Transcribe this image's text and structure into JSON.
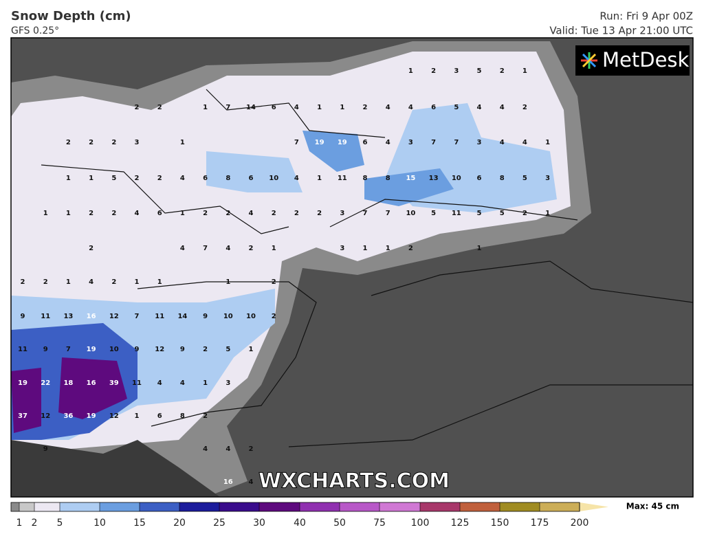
{
  "header": {
    "title": "Snow Depth (cm)",
    "subtitle": "GFS 0.25°",
    "run": "Run: Fri 9 Apr 00Z",
    "valid": "Valid: Tue 13 Apr 21:00 UTC"
  },
  "logo": "MetDesk",
  "watermark": "WXCHARTS.COM",
  "map_values": [
    [
      null,
      null,
      null,
      null,
      null,
      null,
      null,
      null,
      null,
      null,
      null,
      null,
      null,
      null,
      null,
      null,
      null,
      1,
      2,
      3,
      5,
      2,
      1,
      null
    ],
    [
      null,
      null,
      null,
      null,
      null,
      2,
      2,
      null,
      1,
      7,
      14,
      6,
      4,
      1,
      1,
      2,
      4,
      4,
      6,
      5,
      4,
      4,
      2,
      null
    ],
    [
      null,
      null,
      2,
      2,
      2,
      3,
      null,
      1,
      null,
      null,
      null,
      null,
      7,
      19,
      19,
      6,
      4,
      3,
      7,
      7,
      3,
      4,
      4,
      1
    ],
    [
      null,
      null,
      1,
      1,
      5,
      2,
      2,
      4,
      6,
      8,
      6,
      10,
      4,
      1,
      11,
      8,
      8,
      15,
      13,
      10,
      6,
      8,
      5,
      3
    ],
    [
      null,
      1,
      1,
      2,
      2,
      4,
      6,
      1,
      2,
      2,
      4,
      2,
      2,
      2,
      3,
      7,
      7,
      10,
      5,
      11,
      5,
      5,
      2,
      1
    ],
    [
      null,
      null,
      null,
      2,
      null,
      null,
      null,
      4,
      7,
      4,
      2,
      1,
      null,
      null,
      3,
      1,
      1,
      2,
      null,
      null,
      1,
      null,
      null,
      null
    ],
    [
      2,
      2,
      1,
      4,
      2,
      1,
      1,
      null,
      null,
      1,
      null,
      2,
      null,
      null,
      null,
      null,
      null,
      null,
      null,
      null,
      null,
      null,
      null,
      null
    ],
    [
      9,
      11,
      13,
      16,
      12,
      7,
      11,
      14,
      9,
      10,
      10,
      2,
      null,
      null,
      null,
      null,
      null,
      null,
      null,
      null,
      null,
      null,
      null,
      null
    ],
    [
      11,
      9,
      7,
      19,
      10,
      9,
      12,
      9,
      2,
      5,
      1,
      null,
      null,
      null,
      null,
      null,
      null,
      null,
      null,
      null,
      null,
      null,
      null,
      null
    ],
    [
      19,
      22,
      18,
      16,
      39,
      11,
      4,
      4,
      1,
      3,
      null,
      null,
      null,
      null,
      null,
      null,
      null,
      null,
      null,
      null,
      null,
      null,
      null,
      null
    ],
    [
      37,
      12,
      36,
      19,
      12,
      1,
      6,
      8,
      2,
      null,
      null,
      null,
      null,
      null,
      null,
      null,
      null,
      null,
      null,
      null,
      null,
      null,
      null,
      null
    ],
    [
      null,
      9,
      null,
      null,
      null,
      null,
      null,
      null,
      4,
      4,
      2,
      null,
      null,
      null,
      null,
      null,
      null,
      null,
      null,
      null,
      null,
      null,
      null,
      null
    ],
    [
      null,
      null,
      null,
      null,
      null,
      null,
      null,
      null,
      null,
      16,
      4,
      null,
      null,
      null,
      null,
      null,
      null,
      null,
      null,
      null,
      null,
      null,
      null,
      null
    ]
  ],
  "legend": {
    "labels": [
      1,
      2,
      5,
      10,
      15,
      20,
      25,
      30,
      40,
      50,
      75,
      100,
      125,
      150,
      175,
      200
    ],
    "colors": [
      "#8a8a8a",
      "#c8c8c8",
      "#ece8f2",
      "#aecdf2",
      "#6b9ee0",
      "#3c5fc4",
      "#1c1c9c",
      "#3a0c8c",
      "#5e0a7e",
      "#9030b0",
      "#b858c8",
      "#d078d4",
      "#a8386a",
      "#c0603c",
      "#a08c22",
      "#ccae58",
      "#f6e4a8"
    ],
    "max": "Max: 45 cm"
  }
}
